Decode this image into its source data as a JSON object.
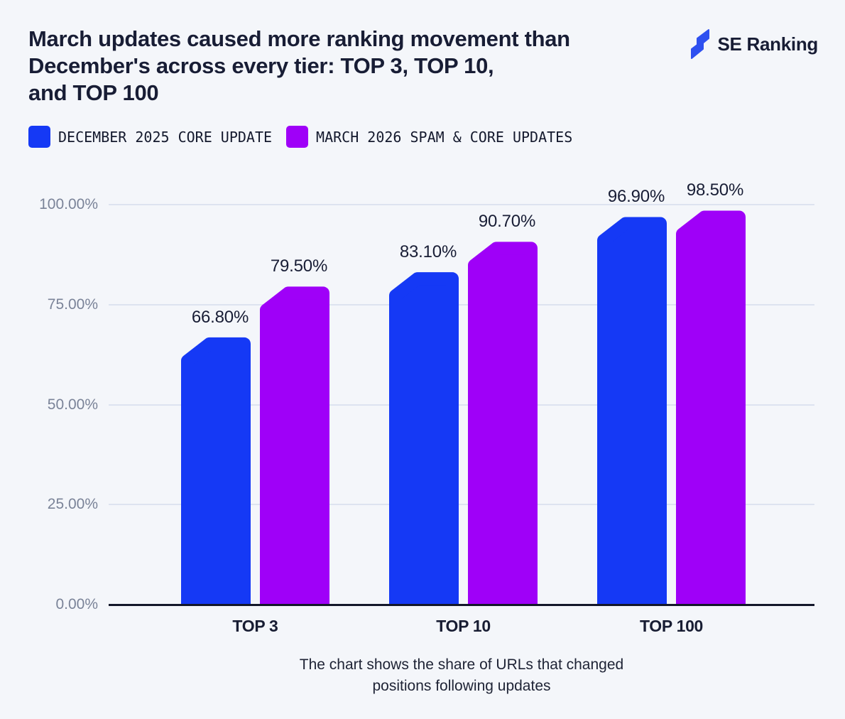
{
  "header": {
    "title_lines": [
      "March updates caused more ranking movement than",
      "December's across every tier: TOP 3, TOP 10,",
      "and TOP 100"
    ],
    "logo_text": "SE Ranking"
  },
  "footer": {
    "caption_lines": [
      "The chart shows the share of URLs that changed",
      "positions following updates"
    ]
  },
  "colors": {
    "background": "#F4F6FA",
    "text_dark": "#181D35",
    "tick_gray": "#7A8398",
    "gridline": "#DDE3F0",
    "axis": "#13172A",
    "series_blue": "#1539F5",
    "series_purple": "#9F00F8",
    "logo_blue": "#2E50F0"
  },
  "chart_data": {
    "type": "bar",
    "title": "March updates caused more ranking movement than December's across every tier: TOP 3, TOP 10, and TOP 100",
    "note": "The chart shows the share of URLs that changed positions following updates",
    "xlabel": "",
    "ylabel": "",
    "ylim": [
      0,
      100
    ],
    "grid": true,
    "legend_position": "top-left",
    "categories": [
      "TOP 3",
      "TOP 10",
      "TOP 100"
    ],
    "series": [
      {
        "name": "DECEMBER 2025 CORE UPDATE",
        "color": "#1539F5",
        "values": [
          66.8,
          83.1,
          96.9
        ],
        "value_labels": [
          "66.80%",
          "83.10%",
          "96.90%"
        ]
      },
      {
        "name": "MARCH 2026 SPAM & CORE UPDATES",
        "color": "#9F00F8",
        "values": [
          79.5,
          90.7,
          98.5
        ],
        "value_labels": [
          "79.50%",
          "90.70%",
          "98.50%"
        ]
      }
    ],
    "yticks": {
      "values": [
        0,
        25,
        50,
        75,
        100
      ],
      "labels": [
        "0.00%",
        "25.00%",
        "50.00%",
        "75.00%",
        "100.00%"
      ]
    }
  }
}
